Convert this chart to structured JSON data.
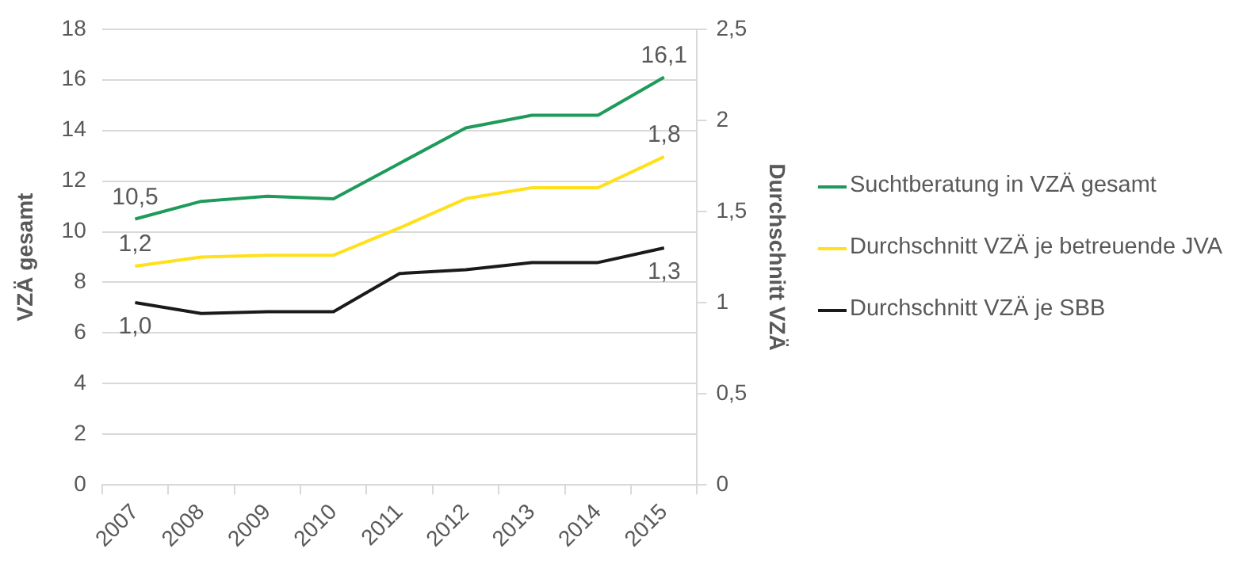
{
  "chart_data": {
    "type": "line",
    "categories": [
      "2007",
      "2008",
      "2009",
      "2010",
      "2011",
      "2012",
      "2013",
      "2014",
      "2015"
    ],
    "ylabel": "VZÄ gesamt",
    "y2label": "Durchschnitt VZÄ",
    "ylim": [
      0,
      18
    ],
    "yticks": [
      0,
      2,
      4,
      6,
      8,
      10,
      12,
      14,
      16,
      18
    ],
    "y2lim": [
      0,
      2.5
    ],
    "y2ticks": [
      0,
      {
        "value": 0.5,
        "label": "0,5"
      },
      1,
      {
        "value": 1.5,
        "label": "1,5"
      },
      2,
      {
        "value": 2.5,
        "label": "2,5"
      }
    ],
    "grid": "y",
    "legend": "right",
    "marker": "none",
    "series": [
      {
        "name": "Suchtberatung in VZÄ gesamt",
        "color": "#1e9a5a",
        "values": [
          10.5,
          11.2,
          11.4,
          11.3,
          12.7,
          14.1,
          14.6,
          14.6,
          16.1
        ],
        "value_labels": [
          "10,5",
          null,
          null,
          null,
          null,
          null,
          null,
          null,
          "16,1"
        ]
      },
      {
        "name": "Durchschnitt VZÄ je betreuende JVA",
        "color": "#ffe01a",
        "axis": "y2",
        "values": [
          1.2,
          1.25,
          1.26,
          1.26,
          1.41,
          1.57,
          1.63,
          1.63,
          1.8
        ],
        "value_labels": [
          "1,2",
          null,
          null,
          null,
          null,
          null,
          null,
          null,
          "1,8"
        ]
      },
      {
        "name": "Durchschnitt VZÄ je SBB",
        "color": "#1a1a1a",
        "axis": "y2",
        "values": [
          1.0,
          0.94,
          0.95,
          0.95,
          1.16,
          1.18,
          1.22,
          1.22,
          1.3
        ],
        "value_labels": [
          "1,0",
          null,
          null,
          null,
          null,
          null,
          null,
          null,
          "1,3"
        ]
      }
    ]
  }
}
